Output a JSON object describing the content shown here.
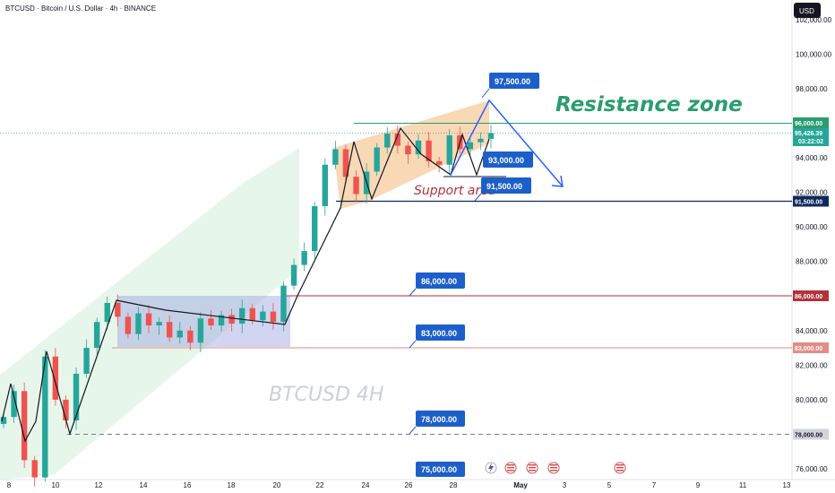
{
  "header": {
    "title": "BTCUSD · Bitcoin / U.S. Dollar · 4h · BINANCE",
    "currency": "USD"
  },
  "watermark": "BTCUSD 4H",
  "annotations": {
    "resistance_zone": "Resistance zone",
    "support_area": "Support area"
  },
  "colors": {
    "callout_blue": "#1c5fc9",
    "arrow_blue": "#2962ff",
    "resistance_green": "#2a9d6f",
    "support_navy": "#0d2a5c",
    "level_red": "#b2323a",
    "level_rose": "#e38c86",
    "channel_green": "#b9e4c4",
    "range_purple": "#9aa1e0",
    "wedge_orange": "#f4b87a",
    "candle_up": "#26a69a",
    "candle_down": "#ef5350",
    "price_label": "#26a69a"
  },
  "price_axis": {
    "ticks": [
      "102,000.00",
      "100,000.00",
      "98,000.00",
      "96,000.00",
      "94,000.00",
      "92,000.00",
      "90,000.00",
      "88,000.00",
      "86,000.00",
      "84,000.00",
      "82,000.00",
      "80,000.00",
      "78,000.00",
      "76,000.00"
    ],
    "current_price": "95,426.39",
    "countdown": "03:22:02",
    "level_tags": [
      "96,000.00",
      "91,500.00",
      "86,000.00",
      "83,000.00",
      "78,000.00"
    ]
  },
  "time_axis": {
    "ticks": [
      "8",
      "10",
      "12",
      "14",
      "16",
      "18",
      "20",
      "22",
      "24",
      "26",
      "28",
      "May",
      "3",
      "5",
      "7",
      "9",
      "11",
      "13"
    ]
  },
  "callouts": [
    "97,500.00",
    "93,000.00",
    "91,500.00",
    "86,000.00",
    "83,000.00",
    "78,000.00",
    "75,000.00"
  ],
  "event_icons": [
    "lightning-event",
    "us-flag-event",
    "us-flag-event",
    "us-flag-event",
    "us-flag-event"
  ],
  "chart_data": {
    "type": "candlestick",
    "title": "BTCUSD · Bitcoin / U.S. Dollar · 4h · BINANCE",
    "xlabel": "",
    "ylabel": "USD",
    "ylim": [
      75000,
      102500
    ],
    "x_ticks": [
      "8",
      "10",
      "12",
      "14",
      "16",
      "18",
      "20",
      "22",
      "24",
      "26",
      "28",
      "May",
      "3",
      "5",
      "7",
      "9",
      "11",
      "13"
    ],
    "y_ticks": [
      76000,
      78000,
      80000,
      82000,
      84000,
      86000,
      88000,
      90000,
      92000,
      94000,
      96000,
      98000,
      100000,
      102000
    ],
    "grid": false,
    "horizontal_levels": [
      {
        "label": "96,000.00",
        "value": 96000,
        "style": "solid-green"
      },
      {
        "label": "91,500.00",
        "value": 91500,
        "style": "solid-navy"
      },
      {
        "label": "86,000.00",
        "value": 86000,
        "style": "solid-red"
      },
      {
        "label": "83,000.00",
        "value": 83000,
        "style": "solid-rose"
      },
      {
        "label": "78,000.00",
        "value": 78000,
        "style": "dashed-gray"
      }
    ],
    "close_path": [
      [
        "Apr 7",
        79000
      ],
      [
        "Apr 7",
        80500
      ],
      [
        "Apr 8",
        76500
      ],
      [
        "Apr 9",
        75500
      ],
      [
        "Apr 9",
        82500
      ],
      [
        "Apr 10",
        80000
      ],
      [
        "Apr 10",
        78800
      ],
      [
        "Apr 11",
        81500
      ],
      [
        "Apr 11",
        83000
      ],
      [
        "Apr 12",
        84500
      ],
      [
        "Apr 12",
        85600
      ],
      [
        "Apr 13",
        84800
      ],
      [
        "Apr 13",
        83800
      ],
      [
        "Apr 14",
        85000
      ],
      [
        "Apr 14",
        84300
      ],
      [
        "Apr 15",
        84500
      ],
      [
        "Apr 15",
        83600
      ],
      [
        "Apr 16",
        84000
      ],
      [
        "Apr 16",
        83300
      ],
      [
        "Apr 17",
        84700
      ],
      [
        "Apr 17",
        84300
      ],
      [
        "Apr 18",
        84900
      ],
      [
        "Apr 18",
        84400
      ],
      [
        "Apr 19",
        85300
      ],
      [
        "Apr 19",
        84600
      ],
      [
        "Apr 20",
        85100
      ],
      [
        "Apr 20",
        84500
      ],
      [
        "Apr 21",
        86600
      ],
      [
        "Apr 21",
        87800
      ],
      [
        "Apr 22",
        88600
      ],
      [
        "Apr 22",
        91200
      ],
      [
        "Apr 23",
        93600
      ],
      [
        "Apr 23",
        94500
      ],
      [
        "Apr 23",
        92900
      ],
      [
        "Apr 24",
        91900
      ],
      [
        "Apr 24",
        93200
      ],
      [
        "Apr 25",
        94600
      ],
      [
        "Apr 25",
        95400
      ],
      [
        "Apr 26",
        94700
      ],
      [
        "Apr 26",
        94200
      ],
      [
        "Apr 27",
        95000
      ],
      [
        "Apr 27",
        93800
      ],
      [
        "Apr 28",
        93600
      ],
      [
        "Apr 28",
        95300
      ],
      [
        "Apr 29",
        94500
      ],
      [
        "Apr 29",
        94900
      ],
      [
        "Apr 30",
        95100
      ],
      [
        "Apr 30",
        95426
      ]
    ],
    "projection": [
      93000,
      97500,
      91500
    ],
    "last_price": 95426.39
  }
}
